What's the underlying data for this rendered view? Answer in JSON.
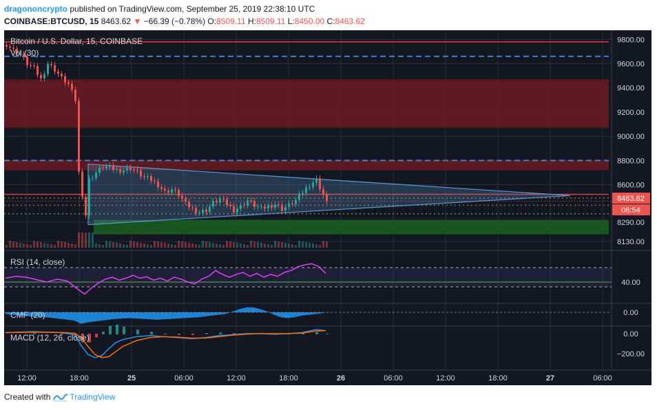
{
  "header": {
    "author": "dragononcrypto",
    "published_text": "published on TradingView.com, September 25, 2019 22:38:10 UTC",
    "symbol": "COINBASE:BTCUSD, 15",
    "last": "8463.62",
    "change_arrow": "▼",
    "change": "−66.39 (−0.78%)",
    "o_label": "O:",
    "o_value": "8509.11",
    "h_label": "H:",
    "h_value": "8509.11",
    "l_label": "L:",
    "l_value": "8450.00",
    "c_label": "C:",
    "c_value": "8463.62"
  },
  "panes": {
    "main_title": "Bitcoin / U.S. Dollar, 15, COINBASE",
    "vol_label": "Vol (30)",
    "rsi_label": "RSI (14, close)",
    "cmf_label": "CMF (20)",
    "macd_label": "MACD (12, 26, close)"
  },
  "price_badges": {
    "last_price": "8463.62",
    "countdown": "06:54"
  },
  "footer": {
    "created_with": "Created with",
    "brand": "TradingView"
  },
  "colors": {
    "background": "#131722",
    "up": "#26a69a",
    "down": "#ef5350",
    "rsi": "#e040fb",
    "cmf": "#2196f3",
    "macd": "#2196f3",
    "signal": "#ff6d00",
    "resistance_zone": "#6b1a22",
    "support_zone": "#1b5e20",
    "triangle": "#5b9bd5"
  },
  "chart_data": [
    {
      "type": "candlestick",
      "title": "Bitcoin / U.S. Dollar, 15, COINBASE",
      "x_ticks": [
        "12:00",
        "18:00",
        "25",
        "06:00",
        "12:00",
        "18:00",
        "26",
        "06:00",
        "12:00",
        "18:00",
        "27",
        "06:00"
      ],
      "y_ticks": [
        "9800.00",
        "9600.00",
        "9400.00",
        "9200.00",
        "9000.00",
        "8800.00",
        "8600.00",
        "8290.00",
        "8130.00"
      ],
      "ylim": [
        8080,
        9830
      ],
      "close_path": [
        [
          0,
          9760
        ],
        [
          2,
          9710
        ],
        [
          4,
          9680
        ],
        [
          6,
          9600
        ],
        [
          8,
          9560
        ],
        [
          10,
          9470
        ],
        [
          12,
          9600
        ],
        [
          14,
          9550
        ],
        [
          16,
          9480
        ],
        [
          18,
          9430
        ],
        [
          20,
          9300
        ],
        [
          21,
          8700
        ],
        [
          22,
          8520
        ],
        [
          23,
          8350
        ],
        [
          24,
          8640
        ],
        [
          26,
          8700
        ],
        [
          28,
          8750
        ],
        [
          30,
          8740
        ],
        [
          32,
          8720
        ],
        [
          34,
          8720
        ],
        [
          36,
          8740
        ],
        [
          38,
          8700
        ],
        [
          40,
          8660
        ],
        [
          42,
          8640
        ],
        [
          44,
          8600
        ],
        [
          46,
          8540
        ],
        [
          48,
          8560
        ],
        [
          50,
          8520
        ],
        [
          52,
          8440
        ],
        [
          54,
          8400
        ],
        [
          56,
          8370
        ],
        [
          58,
          8390
        ],
        [
          60,
          8450
        ],
        [
          62,
          8480
        ],
        [
          64,
          8440
        ],
        [
          66,
          8390
        ],
        [
          68,
          8420
        ],
        [
          70,
          8470
        ],
        [
          72,
          8430
        ],
        [
          74,
          8400
        ],
        [
          76,
          8420
        ],
        [
          78,
          8440
        ],
        [
          80,
          8400
        ],
        [
          82,
          8430
        ],
        [
          84,
          8470
        ],
        [
          86,
          8540
        ],
        [
          88,
          8600
        ],
        [
          90,
          8640
        ],
        [
          92,
          8520
        ],
        [
          93,
          8463.62
        ]
      ],
      "last_price": 8463.62,
      "resistance_zones": [
        [
          9070,
          9470
        ],
        [
          8720,
          8800
        ]
      ],
      "support_zone": [
        8190,
        8310
      ],
      "red_lines": [
        9780,
        8520
      ],
      "dashed_levels": [
        9660,
        8800
      ],
      "dotted_levels": [
        8490,
        8430,
        8360
      ],
      "triangle": {
        "upper": [
          [
            24,
            8770
          ],
          [
            164,
            8510
          ]
        ],
        "lower": [
          [
            24,
            8270
          ],
          [
            164,
            8510
          ]
        ]
      }
    },
    {
      "type": "line",
      "name": "RSI (14, close)",
      "y_ticks": [
        "40.00"
      ],
      "bands": [
        70,
        30
      ],
      "guide": 40,
      "points": [
        [
          0,
          48
        ],
        [
          3,
          52
        ],
        [
          6,
          50
        ],
        [
          9,
          45
        ],
        [
          12,
          40
        ],
        [
          15,
          46
        ],
        [
          18,
          42
        ],
        [
          21,
          25
        ],
        [
          23,
          15
        ],
        [
          25,
          28
        ],
        [
          27,
          38
        ],
        [
          29,
          46
        ],
        [
          31,
          50
        ],
        [
          33,
          44
        ],
        [
          35,
          48
        ],
        [
          37,
          54
        ],
        [
          39,
          48
        ],
        [
          41,
          51
        ],
        [
          43,
          44
        ],
        [
          45,
          48
        ],
        [
          47,
          42
        ],
        [
          49,
          50
        ],
        [
          51,
          46
        ],
        [
          53,
          40
        ],
        [
          55,
          36
        ],
        [
          57,
          46
        ],
        [
          59,
          52
        ],
        [
          61,
          64
        ],
        [
          63,
          56
        ],
        [
          65,
          50
        ],
        [
          67,
          56
        ],
        [
          69,
          60
        ],
        [
          71,
          52
        ],
        [
          73,
          58
        ],
        [
          75,
          50
        ],
        [
          77,
          56
        ],
        [
          79,
          52
        ],
        [
          81,
          60
        ],
        [
          83,
          64
        ],
        [
          85,
          72
        ],
        [
          87,
          76
        ],
        [
          89,
          78
        ],
        [
          91,
          72
        ],
        [
          93,
          58
        ]
      ]
    },
    {
      "type": "area",
      "name": "CMF (20)",
      "y_ticks": [
        "0.00"
      ],
      "points": [
        [
          0,
          -0.02
        ],
        [
          4,
          -0.04
        ],
        [
          8,
          -0.05
        ],
        [
          12,
          -0.06
        ],
        [
          16,
          -0.08
        ],
        [
          20,
          -0.1
        ],
        [
          22,
          -0.14
        ],
        [
          24,
          -0.12
        ],
        [
          28,
          -0.1
        ],
        [
          32,
          -0.08
        ],
        [
          36,
          -0.07
        ],
        [
          40,
          -0.08
        ],
        [
          44,
          -0.09
        ],
        [
          48,
          -0.08
        ],
        [
          52,
          -0.07
        ],
        [
          56,
          -0.06
        ],
        [
          60,
          -0.04
        ],
        [
          64,
          -0.02
        ],
        [
          66,
          0.01
        ],
        [
          68,
          0.04
        ],
        [
          70,
          0.06
        ],
        [
          72,
          0.06
        ],
        [
          74,
          0.04
        ],
        [
          76,
          0.01
        ],
        [
          78,
          -0.03
        ],
        [
          80,
          -0.06
        ],
        [
          82,
          -0.07
        ],
        [
          84,
          -0.06
        ],
        [
          86,
          -0.04
        ],
        [
          88,
          -0.03
        ],
        [
          90,
          -0.02
        ],
        [
          92,
          -0.01
        ],
        [
          93,
          0.0
        ]
      ]
    },
    {
      "type": "line",
      "name": "MACD (12, 26, close)",
      "y_ticks": [
        "0.00",
        "−200.00"
      ],
      "macd": [
        [
          0,
          10
        ],
        [
          8,
          20
        ],
        [
          16,
          10
        ],
        [
          20,
          -10
        ],
        [
          22,
          -120
        ],
        [
          24,
          -210
        ],
        [
          26,
          -240
        ],
        [
          28,
          -220
        ],
        [
          30,
          -150
        ],
        [
          32,
          -90
        ],
        [
          34,
          -60
        ],
        [
          38,
          -30
        ],
        [
          42,
          -20
        ],
        [
          46,
          -30
        ],
        [
          50,
          -40
        ],
        [
          54,
          -50
        ],
        [
          58,
          -40
        ],
        [
          62,
          -20
        ],
        [
          66,
          -10
        ],
        [
          70,
          0
        ],
        [
          74,
          0
        ],
        [
          78,
          -5
        ],
        [
          82,
          0
        ],
        [
          86,
          10
        ],
        [
          90,
          40
        ],
        [
          93,
          30
        ]
      ],
      "signal": [
        [
          0,
          10
        ],
        [
          8,
          15
        ],
        [
          16,
          12
        ],
        [
          20,
          5
        ],
        [
          22,
          -40
        ],
        [
          24,
          -130
        ],
        [
          26,
          -210
        ],
        [
          28,
          -240
        ],
        [
          30,
          -230
        ],
        [
          32,
          -180
        ],
        [
          34,
          -130
        ],
        [
          38,
          -70
        ],
        [
          42,
          -40
        ],
        [
          46,
          -30
        ],
        [
          50,
          -35
        ],
        [
          54,
          -45
        ],
        [
          58,
          -45
        ],
        [
          62,
          -30
        ],
        [
          66,
          -15
        ],
        [
          70,
          -5
        ],
        [
          74,
          0
        ],
        [
          78,
          0
        ],
        [
          82,
          0
        ],
        [
          86,
          5
        ],
        [
          90,
          25
        ],
        [
          93,
          30
        ]
      ]
    }
  ]
}
